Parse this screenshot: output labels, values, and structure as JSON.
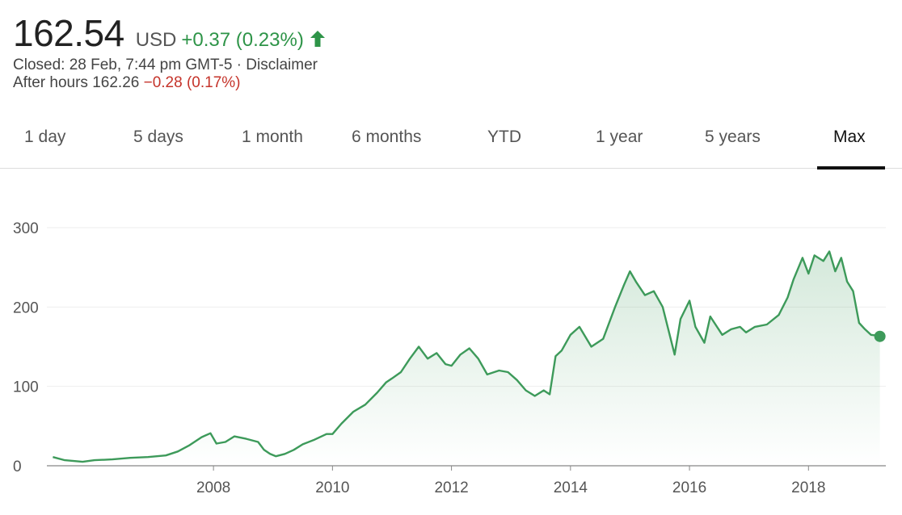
{
  "quote": {
    "price": "162.54",
    "currency": "USD",
    "change": "+0.37 (0.23%)",
    "closed_text": "Closed: 28 Feb, 7:44 pm GMT-5 · Disclaimer",
    "after_hours_label": "After hours 162.26",
    "after_hours_change": "−0.28 (0.17%)"
  },
  "tabs": [
    {
      "label": "1 day"
    },
    {
      "label": "5 days"
    },
    {
      "label": "1 month"
    },
    {
      "label": "6 months"
    },
    {
      "label": "YTD"
    },
    {
      "label": "1 year"
    },
    {
      "label": "5 years"
    },
    {
      "label": "Max"
    }
  ],
  "active_tab": "Max",
  "colors": {
    "up": "#2e9448",
    "down": "#c5332a",
    "line": "#3d9a5a",
    "grid": "#eeeeee",
    "axis": "#555555"
  },
  "chart_data": {
    "type": "area",
    "yticks": [
      0,
      100,
      200,
      300
    ],
    "xticks": [
      "2008",
      "2010",
      "2012",
      "2014",
      "2016",
      "2018"
    ],
    "ylim": [
      0,
      300
    ],
    "xlim": [
      2005.2,
      2019.3
    ],
    "grid": true,
    "series": [
      {
        "points": [
          [
            2005.3,
            11
          ],
          [
            2005.5,
            7
          ],
          [
            2005.8,
            5
          ],
          [
            2006.0,
            7
          ],
          [
            2006.3,
            8
          ],
          [
            2006.6,
            10
          ],
          [
            2006.9,
            11
          ],
          [
            2007.2,
            13
          ],
          [
            2007.4,
            18
          ],
          [
            2007.6,
            26
          ],
          [
            2007.8,
            36
          ],
          [
            2007.95,
            41
          ],
          [
            2008.05,
            28
          ],
          [
            2008.2,
            30
          ],
          [
            2008.35,
            37
          ],
          [
            2008.55,
            34
          ],
          [
            2008.75,
            30
          ],
          [
            2008.85,
            20
          ],
          [
            2008.95,
            15
          ],
          [
            2009.05,
            12
          ],
          [
            2009.2,
            15
          ],
          [
            2009.35,
            20
          ],
          [
            2009.5,
            27
          ],
          [
            2009.7,
            33
          ],
          [
            2009.9,
            40
          ],
          [
            2010.0,
            40
          ],
          [
            2010.15,
            53
          ],
          [
            2010.35,
            68
          ],
          [
            2010.55,
            77
          ],
          [
            2010.75,
            92
          ],
          [
            2010.9,
            105
          ],
          [
            2011.0,
            110
          ],
          [
            2011.15,
            118
          ],
          [
            2011.3,
            135
          ],
          [
            2011.45,
            150
          ],
          [
            2011.6,
            135
          ],
          [
            2011.75,
            142
          ],
          [
            2011.9,
            128
          ],
          [
            2012.0,
            126
          ],
          [
            2012.15,
            140
          ],
          [
            2012.3,
            148
          ],
          [
            2012.45,
            135
          ],
          [
            2012.6,
            115
          ],
          [
            2012.8,
            120
          ],
          [
            2012.95,
            118
          ],
          [
            2013.1,
            108
          ],
          [
            2013.25,
            95
          ],
          [
            2013.4,
            88
          ],
          [
            2013.55,
            95
          ],
          [
            2013.65,
            90
          ],
          [
            2013.75,
            138
          ],
          [
            2013.85,
            145
          ],
          [
            2014.0,
            165
          ],
          [
            2014.15,
            175
          ],
          [
            2014.35,
            150
          ],
          [
            2014.55,
            160
          ],
          [
            2014.75,
            200
          ],
          [
            2014.9,
            228
          ],
          [
            2015.0,
            245
          ],
          [
            2015.1,
            232
          ],
          [
            2015.25,
            215
          ],
          [
            2015.4,
            220
          ],
          [
            2015.55,
            200
          ],
          [
            2015.65,
            170
          ],
          [
            2015.75,
            140
          ],
          [
            2015.85,
            185
          ],
          [
            2016.0,
            208
          ],
          [
            2016.1,
            175
          ],
          [
            2016.25,
            155
          ],
          [
            2016.35,
            188
          ],
          [
            2016.55,
            165
          ],
          [
            2016.7,
            172
          ],
          [
            2016.85,
            175
          ],
          [
            2016.95,
            168
          ],
          [
            2017.1,
            175
          ],
          [
            2017.3,
            178
          ],
          [
            2017.5,
            190
          ],
          [
            2017.65,
            212
          ],
          [
            2017.75,
            235
          ],
          [
            2017.9,
            262
          ],
          [
            2018.0,
            242
          ],
          [
            2018.1,
            265
          ],
          [
            2018.25,
            258
          ],
          [
            2018.35,
            270
          ],
          [
            2018.45,
            245
          ],
          [
            2018.55,
            262
          ],
          [
            2018.65,
            232
          ],
          [
            2018.75,
            220
          ],
          [
            2018.85,
            180
          ],
          [
            2018.95,
            172
          ],
          [
            2019.05,
            165
          ],
          [
            2019.15,
            164
          ],
          [
            2019.2,
            163
          ]
        ]
      }
    ]
  }
}
